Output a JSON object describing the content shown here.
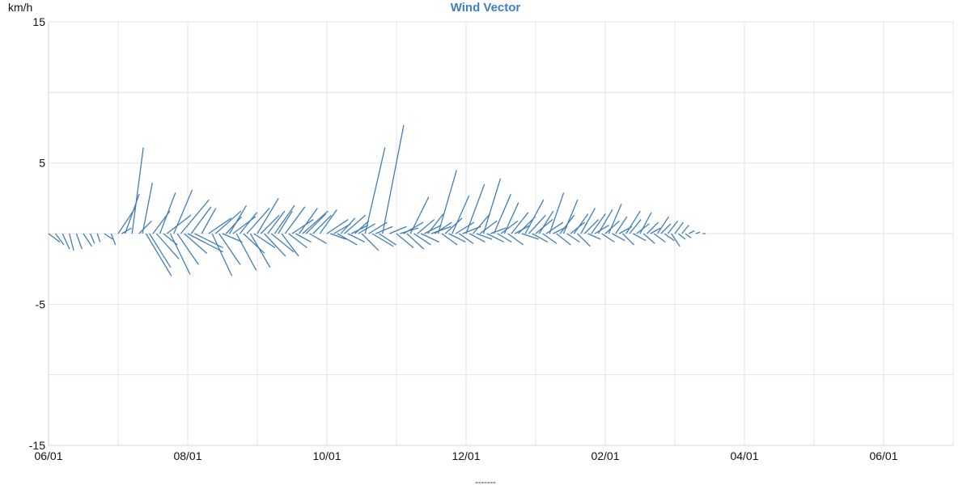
{
  "chart_data": {
    "type": "line",
    "title": "Wind Vector",
    "ylabel": "km/h",
    "xlabel": "",
    "footer_label": "-------",
    "x_ticks": [
      "06/01",
      "08/01",
      "10/01",
      "12/01",
      "02/01",
      "04/01",
      "06/01"
    ],
    "y_ticks": [
      15,
      5,
      -5,
      -15
    ],
    "ylim": [
      -15,
      15
    ],
    "xlim": [
      0,
      13
    ],
    "grid": true,
    "series": [
      {
        "color": "#3f7fb6",
        "vectors": [
          {
            "x": 0.0,
            "u": 0.8,
            "v": -0.6
          },
          {
            "x": 0.1,
            "u": 0.6,
            "v": -0.8
          },
          {
            "x": 0.2,
            "u": 0.5,
            "v": -1.1
          },
          {
            "x": 0.3,
            "u": 0.3,
            "v": -1.2
          },
          {
            "x": 0.4,
            "u": 0.4,
            "v": -1.1
          },
          {
            "x": 0.5,
            "u": 0.6,
            "v": -0.9
          },
          {
            "x": 0.6,
            "u": 0.3,
            "v": -0.7
          },
          {
            "x": 0.7,
            "u": 0.2,
            "v": -0.6
          },
          {
            "x": 0.8,
            "u": 0.6,
            "v": -0.4
          },
          {
            "x": 0.9,
            "u": 0.3,
            "v": -0.8
          },
          {
            "x": 1.0,
            "u": 1.2,
            "v": 1.8
          },
          {
            "x": 1.05,
            "u": 0.7,
            "v": 0.4
          },
          {
            "x": 1.1,
            "u": 1.0,
            "v": 2.8
          },
          {
            "x": 1.2,
            "u": 0.8,
            "v": 6.1
          },
          {
            "x": 1.3,
            "u": 0.9,
            "v": 0.9
          },
          {
            "x": 1.35,
            "u": 0.7,
            "v": 3.6
          },
          {
            "x": 1.4,
            "u": 1.8,
            "v": -3.0
          },
          {
            "x": 1.45,
            "u": 1.5,
            "v": -2.4
          },
          {
            "x": 1.5,
            "u": 1.2,
            "v": 1.6
          },
          {
            "x": 1.55,
            "u": 1.6,
            "v": -1.8
          },
          {
            "x": 1.6,
            "u": 1.1,
            "v": 2.9
          },
          {
            "x": 1.65,
            "u": 1.0,
            "v": -0.8
          },
          {
            "x": 1.7,
            "u": 1.7,
            "v": 1.3
          },
          {
            "x": 1.75,
            "u": 1.4,
            "v": -2.9
          },
          {
            "x": 1.8,
            "u": 1.3,
            "v": 3.1
          },
          {
            "x": 1.85,
            "u": 1.5,
            "v": -2.2
          },
          {
            "x": 1.9,
            "u": 2.0,
            "v": 2.4
          },
          {
            "x": 1.95,
            "u": 1.6,
            "v": -1.4
          },
          {
            "x": 2.0,
            "u": 2.5,
            "v": -1.3
          },
          {
            "x": 2.05,
            "u": 1.4,
            "v": 1.9
          },
          {
            "x": 2.1,
            "u": 2.0,
            "v": -1.0
          },
          {
            "x": 2.2,
            "u": 1.0,
            "v": 1.8
          },
          {
            "x": 2.3,
            "u": 1.6,
            "v": 1.1
          },
          {
            "x": 2.35,
            "u": 1.4,
            "v": -3.0
          },
          {
            "x": 2.4,
            "u": 1.8,
            "v": 1.6
          },
          {
            "x": 2.45,
            "u": 1.5,
            "v": -2.2
          },
          {
            "x": 2.5,
            "u": 1.4,
            "v": -0.6
          },
          {
            "x": 2.55,
            "u": 1.1,
            "v": 1.2
          },
          {
            "x": 2.6,
            "u": 1.2,
            "v": 2.0
          },
          {
            "x": 2.65,
            "u": 1.6,
            "v": 1.2
          },
          {
            "x": 2.7,
            "u": 1.4,
            "v": -2.6
          },
          {
            "x": 2.75,
            "u": 1.2,
            "v": 1.5
          },
          {
            "x": 2.8,
            "u": 1.5,
            "v": -1.4
          },
          {
            "x": 2.85,
            "u": 1.6,
            "v": 1.8
          },
          {
            "x": 2.9,
            "u": 1.4,
            "v": -2.4
          },
          {
            "x": 2.95,
            "u": 1.5,
            "v": -1.0
          },
          {
            "x": 3.0,
            "u": 1.5,
            "v": 2.5
          },
          {
            "x": 3.05,
            "u": 1.3,
            "v": 1.3
          },
          {
            "x": 3.1,
            "u": 1.5,
            "v": -1.6
          },
          {
            "x": 3.15,
            "u": 1.2,
            "v": 1.6
          },
          {
            "x": 3.2,
            "u": 1.6,
            "v": -1.3
          },
          {
            "x": 3.25,
            "u": 1.4,
            "v": 2.0
          },
          {
            "x": 3.3,
            "u": 1.0,
            "v": 1.6
          },
          {
            "x": 3.35,
            "u": 1.2,
            "v": -1.6
          },
          {
            "x": 3.4,
            "u": 1.4,
            "v": 1.9
          },
          {
            "x": 3.45,
            "u": 1.3,
            "v": -1.0
          },
          {
            "x": 3.5,
            "u": 1.5,
            "v": 1.0
          },
          {
            "x": 3.55,
            "u": 1.1,
            "v": -0.6
          },
          {
            "x": 3.6,
            "u": 1.3,
            "v": 1.8
          },
          {
            "x": 3.65,
            "u": 1.8,
            "v": 1.6
          },
          {
            "x": 3.7,
            "u": 1.4,
            "v": 1.4
          },
          {
            "x": 3.75,
            "u": 1.2,
            "v": -0.7
          },
          {
            "x": 3.8,
            "u": 1.3,
            "v": 1.3
          },
          {
            "x": 3.9,
            "u": 1.2,
            "v": 1.7
          },
          {
            "x": 4.0,
            "u": 1.5,
            "v": 1.0
          },
          {
            "x": 4.05,
            "u": 1.1,
            "v": -0.4
          },
          {
            "x": 4.1,
            "u": 1.2,
            "v": 0.7
          },
          {
            "x": 4.15,
            "u": 1.4,
            "v": -0.8
          },
          {
            "x": 4.2,
            "u": 1.0,
            "v": 1.1
          },
          {
            "x": 4.25,
            "u": 1.5,
            "v": 1.3
          },
          {
            "x": 4.3,
            "u": 1.2,
            "v": -0.6
          },
          {
            "x": 4.35,
            "u": 1.2,
            "v": 0.6
          },
          {
            "x": 4.4,
            "u": 1.0,
            "v": 0.9
          },
          {
            "x": 4.45,
            "u": 1.2,
            "v": 0.7
          },
          {
            "x": 4.5,
            "u": 1.2,
            "v": -1.2
          },
          {
            "x": 4.55,
            "u": 1.4,
            "v": 6.1
          },
          {
            "x": 4.6,
            "u": 1.3,
            "v": 0.8
          },
          {
            "x": 4.65,
            "u": 1.5,
            "v": -0.9
          },
          {
            "x": 4.7,
            "u": 1.2,
            "v": 0.5
          },
          {
            "x": 4.75,
            "u": 1.2,
            "v": -0.8
          },
          {
            "x": 4.8,
            "u": 1.5,
            "v": 7.7
          },
          {
            "x": 4.9,
            "u": 1.2,
            "v": 0.5
          },
          {
            "x": 5.0,
            "u": 1.2,
            "v": -1.0
          },
          {
            "x": 5.05,
            "u": 1.3,
            "v": 0.4
          },
          {
            "x": 5.1,
            "u": 1.4,
            "v": 0.8
          },
          {
            "x": 5.15,
            "u": 1.2,
            "v": -1.1
          },
          {
            "x": 5.2,
            "u": 1.3,
            "v": 2.6
          },
          {
            "x": 5.25,
            "u": 1.2,
            "v": -0.8
          },
          {
            "x": 5.3,
            "u": 1.2,
            "v": 1.0
          },
          {
            "x": 5.35,
            "u": 1.3,
            "v": -0.6
          },
          {
            "x": 5.4,
            "u": 1.2,
            "v": 0.6
          },
          {
            "x": 5.45,
            "u": 1.1,
            "v": 1.4
          },
          {
            "x": 5.5,
            "u": 1.4,
            "v": 0.5
          },
          {
            "x": 5.55,
            "u": 1.2,
            "v": 0.8
          },
          {
            "x": 5.6,
            "u": 1.3,
            "v": 4.5
          },
          {
            "x": 5.65,
            "u": 1.1,
            "v": -0.8
          },
          {
            "x": 5.7,
            "u": 1.2,
            "v": 1.1
          },
          {
            "x": 5.75,
            "u": 1.2,
            "v": -0.6
          },
          {
            "x": 5.8,
            "u": 1.2,
            "v": 2.7
          },
          {
            "x": 5.85,
            "u": 1.3,
            "v": 0.8
          },
          {
            "x": 5.9,
            "u": 1.0,
            "v": -0.7
          },
          {
            "x": 5.95,
            "u": 1.3,
            "v": 0.5
          },
          {
            "x": 6.0,
            "u": 1.3,
            "v": 3.5
          },
          {
            "x": 6.05,
            "u": 1.1,
            "v": -0.6
          },
          {
            "x": 6.1,
            "u": 1.2,
            "v": 1.4
          },
          {
            "x": 6.15,
            "u": 1.1,
            "v": -0.4
          },
          {
            "x": 6.2,
            "u": 1.2,
            "v": 0.9
          },
          {
            "x": 6.25,
            "u": 1.2,
            "v": 3.9
          },
          {
            "x": 6.3,
            "u": 1.2,
            "v": -0.6
          },
          {
            "x": 6.35,
            "u": 1.1,
            "v": 0.4
          },
          {
            "x": 6.4,
            "u": 1.2,
            "v": 2.8
          },
          {
            "x": 6.45,
            "u": 1.0,
            "v": -0.6
          },
          {
            "x": 6.5,
            "u": 1.2,
            "v": 0.9
          },
          {
            "x": 6.55,
            "u": 1.0,
            "v": 2.2
          },
          {
            "x": 6.6,
            "u": 1.1,
            "v": -0.8
          },
          {
            "x": 6.65,
            "u": 1.2,
            "v": 1.5
          },
          {
            "x": 6.7,
            "u": 1.1,
            "v": 0.6
          },
          {
            "x": 6.75,
            "u": 1.2,
            "v": 1.2
          },
          {
            "x": 6.8,
            "u": 1.2,
            "v": -0.4
          },
          {
            "x": 6.85,
            "u": 1.3,
            "v": 2.4
          },
          {
            "x": 6.9,
            "u": 1.2,
            "v": 1.3
          },
          {
            "x": 6.95,
            "u": 1.1,
            "v": -0.6
          },
          {
            "x": 7.0,
            "u": 1.2,
            "v": 1.0
          },
          {
            "x": 7.05,
            "u": 1.0,
            "v": 1.6
          },
          {
            "x": 7.1,
            "u": 1.0,
            "v": -0.7
          },
          {
            "x": 7.15,
            "u": 1.2,
            "v": 0.8
          },
          {
            "x": 7.2,
            "u": 1.0,
            "v": 2.9
          },
          {
            "x": 7.25,
            "u": 1.0,
            "v": 0.5
          },
          {
            "x": 7.3,
            "u": 1.0,
            "v": -0.8
          },
          {
            "x": 7.35,
            "u": 1.0,
            "v": 1.3
          },
          {
            "x": 7.4,
            "u": 1.0,
            "v": 2.4
          },
          {
            "x": 7.45,
            "u": 0.9,
            "v": -0.6
          },
          {
            "x": 7.5,
            "u": 1.0,
            "v": 0.8
          },
          {
            "x": 7.55,
            "u": 1.0,
            "v": 1.4
          },
          {
            "x": 7.6,
            "u": 0.9,
            "v": -0.9
          },
          {
            "x": 7.65,
            "u": 1.0,
            "v": 1.8
          },
          {
            "x": 7.7,
            "u": 1.0,
            "v": 1.0
          },
          {
            "x": 7.75,
            "u": 0.9,
            "v": -0.4
          },
          {
            "x": 7.8,
            "u": 1.0,
            "v": 1.4
          },
          {
            "x": 7.85,
            "u": 1.0,
            "v": 0.6
          },
          {
            "x": 7.9,
            "u": 1.0,
            "v": 1.7
          },
          {
            "x": 7.95,
            "u": 0.9,
            "v": -0.6
          },
          {
            "x": 8.0,
            "u": 1.0,
            "v": 0.9
          },
          {
            "x": 8.05,
            "u": 0.9,
            "v": 2.1
          },
          {
            "x": 8.1,
            "u": 0.9,
            "v": -0.5
          },
          {
            "x": 8.15,
            "u": 0.8,
            "v": 1.2
          },
          {
            "x": 8.2,
            "u": 0.9,
            "v": 0.5
          },
          {
            "x": 8.25,
            "u": 0.8,
            "v": -0.8
          },
          {
            "x": 8.3,
            "u": 1.0,
            "v": 1.6
          },
          {
            "x": 8.35,
            "u": 0.8,
            "v": 1.0
          },
          {
            "x": 8.4,
            "u": 0.9,
            "v": -0.5
          },
          {
            "x": 8.45,
            "u": 0.9,
            "v": 0.7
          },
          {
            "x": 8.5,
            "u": 0.8,
            "v": 1.5
          },
          {
            "x": 8.55,
            "u": 0.8,
            "v": -0.7
          },
          {
            "x": 8.6,
            "u": 0.8,
            "v": 0.8
          },
          {
            "x": 8.65,
            "u": 0.7,
            "v": 0.4
          },
          {
            "x": 8.7,
            "u": 0.8,
            "v": -0.6
          },
          {
            "x": 8.75,
            "u": 0.8,
            "v": 1.2
          },
          {
            "x": 8.8,
            "u": 0.7,
            "v": 0.7
          },
          {
            "x": 8.85,
            "u": 0.7,
            "v": -0.5
          },
          {
            "x": 8.9,
            "u": 0.7,
            "v": 0.9
          },
          {
            "x": 8.95,
            "u": 0.6,
            "v": -0.9
          },
          {
            "x": 9.0,
            "u": 0.6,
            "v": 0.8
          },
          {
            "x": 9.05,
            "u": 0.5,
            "v": -0.4
          },
          {
            "x": 9.1,
            "u": 0.5,
            "v": 0.6
          },
          {
            "x": 9.15,
            "u": 0.4,
            "v": -0.3
          },
          {
            "x": 9.2,
            "u": 0.4,
            "v": 0.2
          },
          {
            "x": 9.3,
            "u": 0.3,
            "v": 0.1
          },
          {
            "x": 9.4,
            "u": 0.2,
            "v": 0.0
          }
        ]
      }
    ]
  }
}
